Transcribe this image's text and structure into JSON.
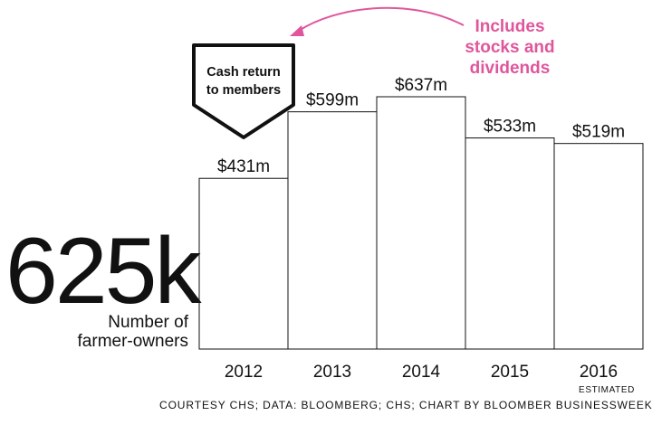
{
  "highlight": {
    "value": "625k",
    "label_lines": [
      "Number of",
      "farmer-owners"
    ]
  },
  "callout": {
    "lines": [
      "Cash return",
      "to members"
    ]
  },
  "note": {
    "lines": [
      "Includes",
      "stocks and",
      "dividends"
    ],
    "color": "#e0569c"
  },
  "chart_data": {
    "type": "bar",
    "title": "",
    "xlabel": "",
    "ylabel": "",
    "categories": [
      "2012",
      "2013",
      "2014",
      "2015",
      "2016"
    ],
    "category_sublabels": [
      "",
      "",
      "",
      "",
      "ESTIMATED"
    ],
    "values": [
      431,
      599,
      637,
      533,
      519
    ],
    "value_labels": [
      "$431m",
      "$599m",
      "$637m",
      "$533m",
      "$519m"
    ],
    "unit": "million USD",
    "ylim": [
      0,
      637
    ],
    "grid": false,
    "bar_fill": "#ffffff",
    "bar_stroke": "#111111"
  },
  "source": "COURTESY CHS; DATA: BLOOMBERG; CHS; CHART BY BLOOMBER BUSINESSWEEK"
}
